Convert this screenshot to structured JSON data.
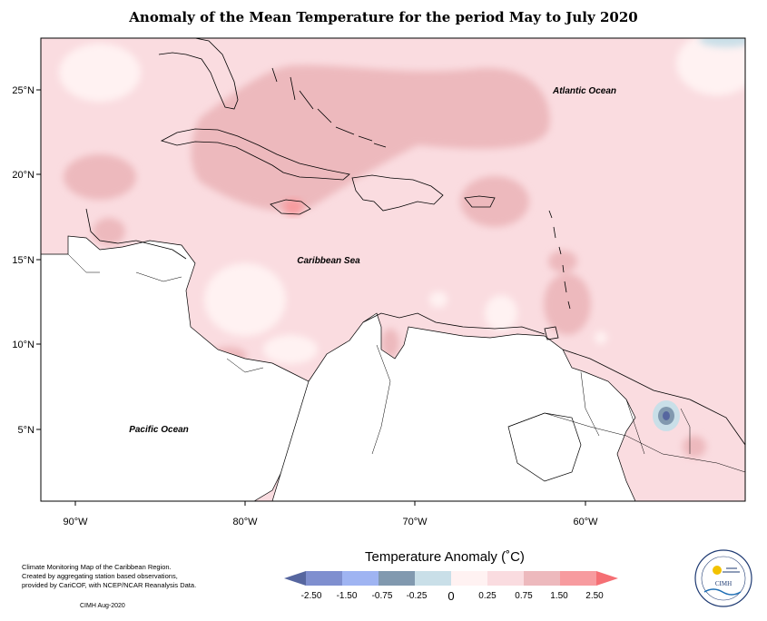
{
  "title": "Anomaly of the Mean Temperature for the period May to July 2020",
  "map": {
    "latitude_labels": [
      "25°N",
      "20°N",
      "15°N",
      "10°N",
      "5°N"
    ],
    "longitude_labels": [
      "90°W",
      "80°W",
      "70°W",
      "60°W"
    ],
    "ocean_labels": {
      "atlantic": "Atlantic Ocean",
      "caribbean": "Caribbean Sea",
      "pacific": "Pacific Ocean"
    }
  },
  "legend": {
    "title": "Temperature Anomaly (˚C)",
    "ticks": [
      "-2.50",
      "-1.50",
      "-0.75",
      "-0.25",
      "0",
      "0.25",
      "0.75",
      "1.50",
      "2.50"
    ],
    "colors": [
      "#56669f",
      "#7f8fcf",
      "#9fb4f2",
      "#8199af",
      "#c9dfe8",
      "#fff2f2",
      "#fadce0",
      "#edb9bd",
      "#f79b9f",
      "#f56f74"
    ]
  },
  "credit": {
    "lines": [
      "Climate Monitoring Map of the Caribbean Region.",
      "Created by aggregating station based observations,",
      "provided by CariCOF, with NCEP/NCAR Reanalysis Data."
    ],
    "date": "CIMH Aug-2020"
  },
  "logo": {
    "text": "CIMH"
  }
}
